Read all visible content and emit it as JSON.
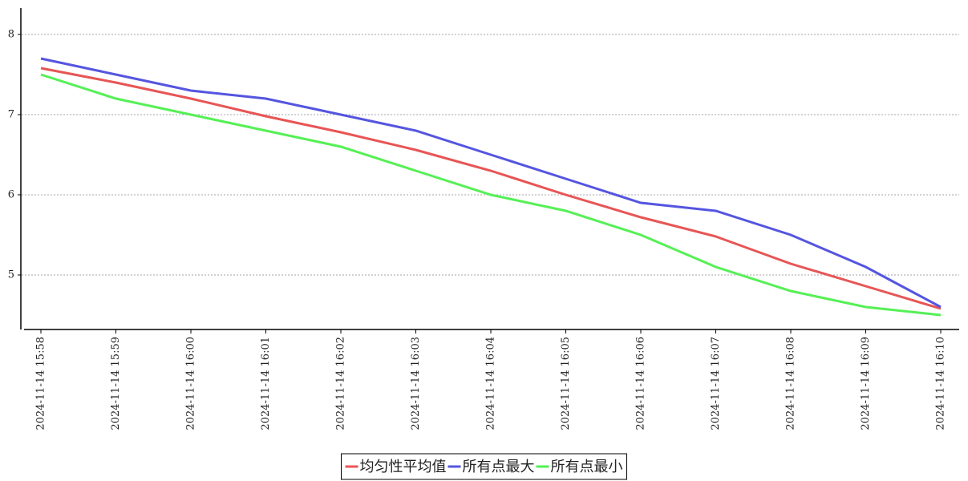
{
  "chart_data": {
    "type": "line",
    "categories": [
      "2024-11-14 15:58",
      "2024-11-14 15:59",
      "2024-11-14 16:00",
      "2024-11-14 16:01",
      "2024-11-14 16:02",
      "2024-11-14 16:03",
      "2024-11-14 16:04",
      "2024-11-14 16:05",
      "2024-11-14 16:06",
      "2024-11-14 16:07",
      "2024-11-14 16:08",
      "2024-11-14 16:09",
      "2024-11-14 16:10"
    ],
    "series": [
      {
        "name": "均匀性平均值",
        "color": "#e85555",
        "values": [
          7.58,
          7.4,
          7.2,
          6.98,
          6.78,
          6.56,
          6.3,
          6.0,
          5.72,
          5.48,
          5.14,
          4.86,
          4.58
        ]
      },
      {
        "name": "所有点最大",
        "color": "#5555e0",
        "values": [
          7.7,
          7.5,
          7.3,
          7.2,
          7.0,
          6.8,
          6.5,
          6.2,
          5.9,
          5.8,
          5.5,
          5.1,
          4.6
        ]
      },
      {
        "name": "所有点最小",
        "color": "#55f055",
        "values": [
          7.5,
          7.2,
          7.0,
          6.8,
          6.6,
          6.3,
          6.0,
          5.8,
          5.5,
          5.1,
          4.8,
          4.6,
          4.5
        ]
      }
    ],
    "ylim": [
      4.32,
      8.33
    ],
    "yticks": [
      5,
      6,
      7,
      8
    ],
    "grid": true,
    "legend": "bottom"
  }
}
